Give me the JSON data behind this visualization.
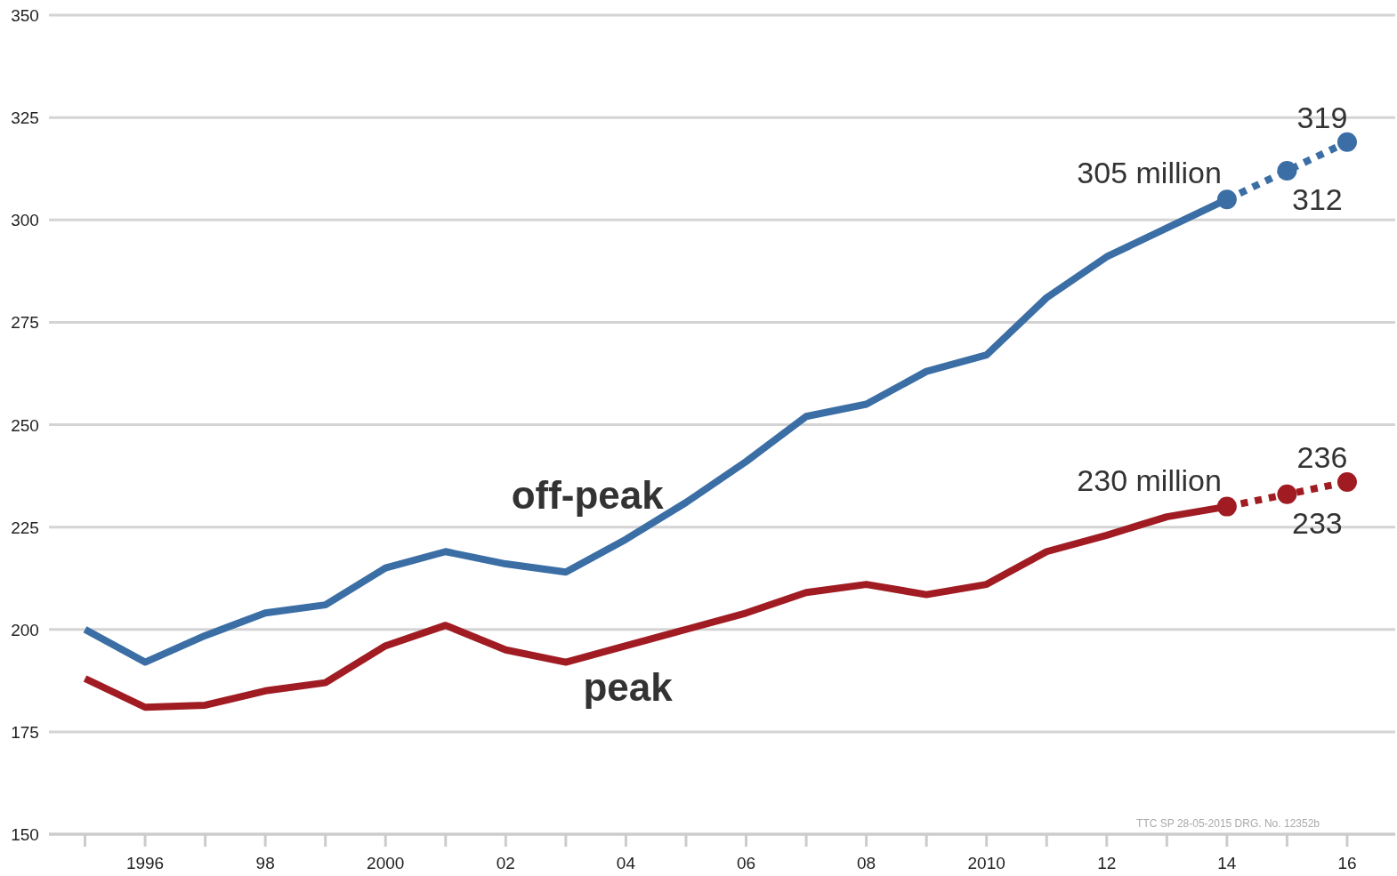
{
  "chart_data": {
    "type": "line",
    "x": [
      1995,
      1996,
      1997,
      1998,
      1999,
      2000,
      2001,
      2002,
      2003,
      2004,
      2005,
      2006,
      2007,
      2008,
      2009,
      2010,
      2011,
      2012,
      2013,
      2014
    ],
    "series": [
      {
        "name": "off-peak",
        "color": "#3a6ea5",
        "line_style": "solid",
        "marker": "none",
        "values": [
          200,
          192,
          198.5,
          204,
          206,
          215,
          219,
          216,
          214,
          222,
          231,
          241,
          252,
          255,
          263,
          267,
          281,
          291,
          298,
          305
        ]
      },
      {
        "color": "#3a6ea5",
        "line_style": "dotted",
        "marker": "circle",
        "x": [
          2014,
          2015,
          2016
        ],
        "values": [
          305,
          312,
          319
        ]
      },
      {
        "name": "peak",
        "color": "#a01c22",
        "line_style": "solid",
        "marker": "none",
        "values": [
          188,
          181,
          181.5,
          185,
          187,
          196,
          201,
          195,
          192,
          196,
          200,
          204,
          209,
          211,
          208.5,
          211,
          219,
          223,
          227.5,
          230
        ]
      },
      {
        "color": "#a01c22",
        "line_style": "dotted",
        "marker": "circle",
        "x": [
          2014,
          2015,
          2016
        ],
        "values": [
          230,
          233,
          236
        ]
      }
    ],
    "xlim": [
      1994.4,
      2016.8
    ],
    "xticks": [
      {
        "value": 1995,
        "label": null
      },
      1996,
      {
        "value": 1997,
        "label": null
      },
      {
        "value": 1998,
        "label": "98"
      },
      {
        "value": 1999,
        "label": null
      },
      {
        "value": 2000,
        "label": "2000"
      },
      {
        "value": 2001,
        "label": null
      },
      {
        "value": 2002,
        "label": "02"
      },
      {
        "value": 2003,
        "label": null
      },
      {
        "value": 2004,
        "label": "04"
      },
      {
        "value": 2005,
        "label": null
      },
      {
        "value": 2006,
        "label": "06"
      },
      {
        "value": 2007,
        "label": null
      },
      {
        "value": 2008,
        "label": "08"
      },
      {
        "value": 2009,
        "label": null
      },
      {
        "value": 2010,
        "label": "2010"
      },
      {
        "value": 2011,
        "label": null
      },
      {
        "value": 2012,
        "label": "12"
      },
      {
        "value": 2013,
        "label": null
      },
      {
        "value": 2014,
        "label": "14"
      },
      {
        "value": 2015,
        "label": null
      },
      {
        "value": 2016,
        "label": "16"
      }
    ],
    "ylim": [
      150,
      350
    ],
    "yticks": [
      150,
      175,
      200,
      225,
      250,
      275,
      300,
      325,
      350
    ],
    "grid": "y",
    "annotations": [
      {
        "text": "305 million",
        "x": 2014,
        "y": 305
      },
      {
        "text": "312",
        "x": 2015,
        "y": 312
      },
      {
        "text": "319",
        "x": 2016,
        "y": 319
      },
      {
        "text": "230 million",
        "x": 2014,
        "y": 230
      },
      {
        "text": "233",
        "x": 2015,
        "y": 233
      },
      {
        "text": "236",
        "x": 2016,
        "y": 236
      },
      "TTC SP 28-05-2015 DRG. No. 12352b"
    ]
  }
}
